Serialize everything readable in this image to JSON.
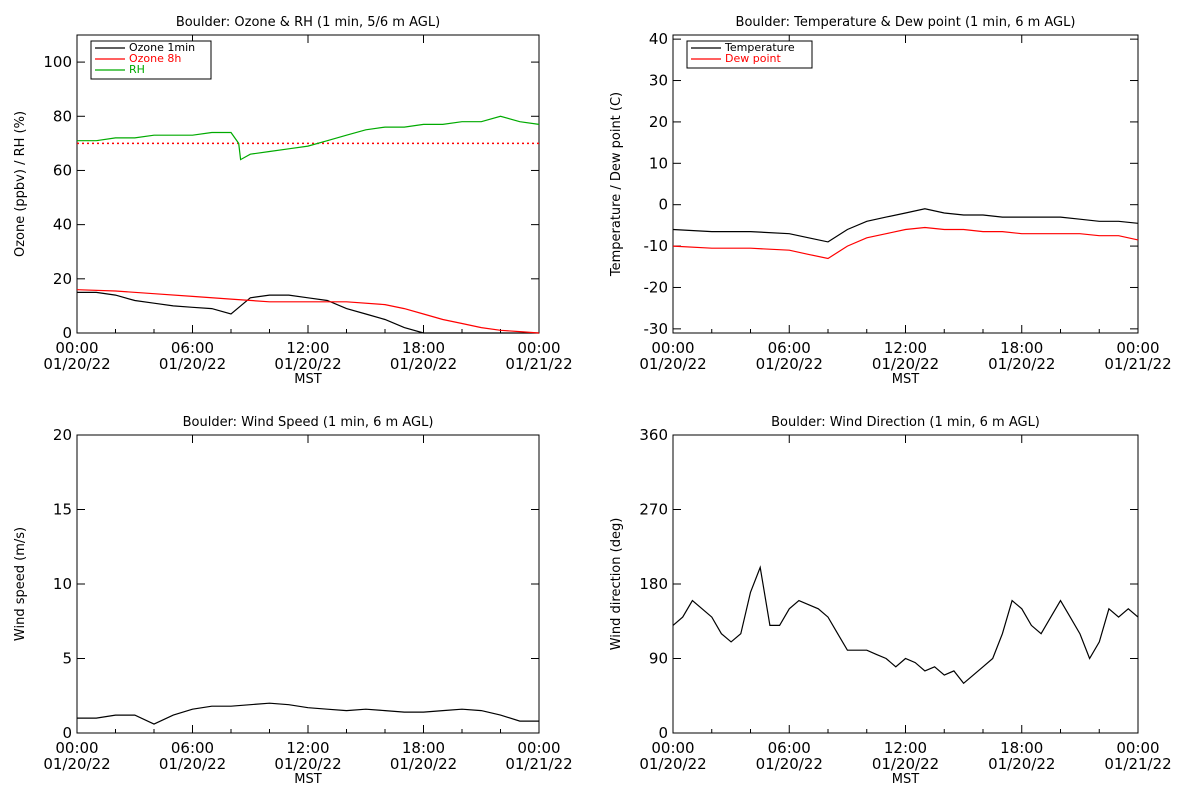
{
  "time_axis": {
    "ticks": [
      {
        "time": "00:00",
        "date": "01/20/22"
      },
      {
        "time": "06:00",
        "date": "01/20/22"
      },
      {
        "time": "12:00",
        "date": "01/20/22"
      },
      {
        "time": "18:00",
        "date": "01/20/22"
      },
      {
        "time": "00:00",
        "date": "01/21/22"
      }
    ],
    "label": "MST"
  },
  "chart_data": [
    {
      "type": "line",
      "title": "Boulder: Ozone & RH (1 min, 5/6 m AGL)",
      "ylabel": "Ozone (ppbv) / RH (%)",
      "xlim": [
        "01/20/22 00:00",
        "01/21/22 00:00"
      ],
      "ylim": [
        0,
        110
      ],
      "yticks": [
        0,
        20,
        40,
        60,
        80,
        100
      ],
      "xlabel": "MST",
      "legend_position": "top-left",
      "reference_line": {
        "y": 70,
        "color": "#ff0000",
        "style": "dotted"
      },
      "series": [
        {
          "name": "Ozone 1min",
          "color": "#000000",
          "x": [
            0,
            1,
            2,
            3,
            4,
            5,
            6,
            7,
            8,
            8.5,
            9,
            10,
            11,
            12,
            13,
            14,
            15,
            16,
            17,
            18,
            19,
            20,
            21,
            22,
            23,
            24
          ],
          "y": [
            15,
            15,
            14,
            12,
            11,
            10,
            9.5,
            9,
            7,
            10,
            13,
            14,
            14,
            13,
            12,
            9,
            7,
            5,
            2,
            0,
            0,
            0,
            0,
            0,
            0,
            0
          ]
        },
        {
          "name": "Ozone 8h",
          "color": "#ff0000",
          "x": [
            0,
            2,
            4,
            6,
            8,
            10,
            12,
            14,
            16,
            17,
            18,
            19,
            20,
            21,
            22,
            23,
            24
          ],
          "y": [
            16,
            15.5,
            14.5,
            13.5,
            12.5,
            11.5,
            11.5,
            11.5,
            10.5,
            9,
            7,
            5,
            3.5,
            2,
            1,
            0.5,
            0
          ]
        },
        {
          "name": "RH",
          "color": "#00aa00",
          "x": [
            0,
            1,
            2,
            3,
            4,
            5,
            6,
            7,
            8,
            8.4,
            8.5,
            9,
            10,
            11,
            12,
            13,
            14,
            15,
            16,
            17,
            18,
            19,
            20,
            21,
            22,
            23,
            24
          ],
          "y": [
            71,
            71,
            72,
            72,
            73,
            73,
            73,
            74,
            74,
            70,
            64,
            66,
            67,
            68,
            69,
            71,
            73,
            75,
            76,
            76,
            77,
            77,
            78,
            78,
            80,
            78,
            77
          ]
        }
      ]
    },
    {
      "type": "line",
      "title": "Boulder: Temperature & Dew point (1 min, 6 m AGL)",
      "ylabel": "Temperature / Dew point (C)",
      "xlim": [
        "01/20/22 00:00",
        "01/21/22 00:00"
      ],
      "ylim": [
        -31,
        41
      ],
      "yticks": [
        -30,
        -20,
        -10,
        0,
        10,
        20,
        30,
        40
      ],
      "xlabel": "MST",
      "legend_position": "top-left",
      "series": [
        {
          "name": "Temperature",
          "color": "#000000",
          "x": [
            0,
            2,
            4,
            6,
            7,
            8,
            9,
            10,
            11,
            12,
            13,
            14,
            15,
            16,
            17,
            18,
            19,
            20,
            21,
            22,
            23,
            24
          ],
          "y": [
            -6,
            -6.5,
            -6.5,
            -7,
            -8,
            -9,
            -6,
            -4,
            -3,
            -2,
            -1,
            -2,
            -2.5,
            -2.5,
            -3,
            -3,
            -3,
            -3,
            -3.5,
            -4,
            -4,
            -4.5
          ]
        },
        {
          "name": "Dew point",
          "color": "#ff0000",
          "x": [
            0,
            2,
            4,
            6,
            7,
            8,
            9,
            10,
            11,
            12,
            13,
            14,
            15,
            16,
            17,
            18,
            19,
            20,
            21,
            22,
            23,
            24
          ],
          "y": [
            -10,
            -10.5,
            -10.5,
            -11,
            -12,
            -13,
            -10,
            -8,
            -7,
            -6,
            -5.5,
            -6,
            -6,
            -6.5,
            -6.5,
            -7,
            -7,
            -7,
            -7,
            -7.5,
            -7.5,
            -8.5
          ]
        }
      ]
    },
    {
      "type": "line",
      "title": "Boulder: Wind Speed (1 min, 6 m AGL)",
      "ylabel": "Wind speed (m/s)",
      "xlim": [
        "01/20/22 00:00",
        "01/21/22 00:00"
      ],
      "ylim": [
        0,
        20
      ],
      "yticks": [
        0,
        5,
        10,
        15,
        20
      ],
      "xlabel": "MST",
      "series": [
        {
          "color": "#000000",
          "x": [
            0,
            1,
            2,
            3,
            4,
            5,
            6,
            7,
            8,
            9,
            10,
            11,
            12,
            13,
            14,
            15,
            16,
            17,
            18,
            19,
            20,
            21,
            22,
            23,
            24
          ],
          "y": [
            1,
            1,
            1.2,
            1.2,
            0.6,
            1.2,
            1.6,
            1.8,
            1.8,
            1.9,
            2,
            1.9,
            1.7,
            1.6,
            1.5,
            1.6,
            1.5,
            1.4,
            1.4,
            1.5,
            1.6,
            1.5,
            1.2,
            0.8,
            0.8
          ]
        }
      ]
    },
    {
      "type": "line",
      "title": "Boulder: Wind Direction (1 min, 6 m AGL)",
      "ylabel": "Wind direction (deg)",
      "xlim": [
        "01/20/22 00:00",
        "01/21/22 00:00"
      ],
      "ylim": [
        0,
        360
      ],
      "yticks": [
        0,
        90,
        180,
        270,
        360
      ],
      "xlabel": "MST",
      "series": [
        {
          "color": "#000000",
          "x": [
            0,
            0.5,
            1,
            1.5,
            2,
            2.5,
            3,
            3.5,
            4,
            4.5,
            5,
            5.5,
            6,
            6.5,
            7,
            7.5,
            8,
            8.5,
            9,
            9.5,
            10,
            10.5,
            11,
            11.5,
            12,
            12.5,
            13,
            13.5,
            14,
            14.5,
            15,
            15.5,
            16,
            16.5,
            17,
            17.5,
            18,
            18.5,
            19,
            19.5,
            20,
            20.5,
            21,
            21.5,
            22,
            22.5,
            23,
            23.5,
            24
          ],
          "y": [
            130,
            140,
            160,
            150,
            140,
            120,
            110,
            120,
            170,
            200,
            130,
            130,
            150,
            160,
            155,
            150,
            140,
            120,
            100,
            100,
            100,
            95,
            90,
            80,
            90,
            85,
            75,
            80,
            70,
            75,
            60,
            70,
            80,
            90,
            120,
            160,
            150,
            130,
            120,
            140,
            160,
            140,
            120,
            90,
            110,
            150,
            140,
            150,
            140
          ]
        }
      ]
    }
  ]
}
